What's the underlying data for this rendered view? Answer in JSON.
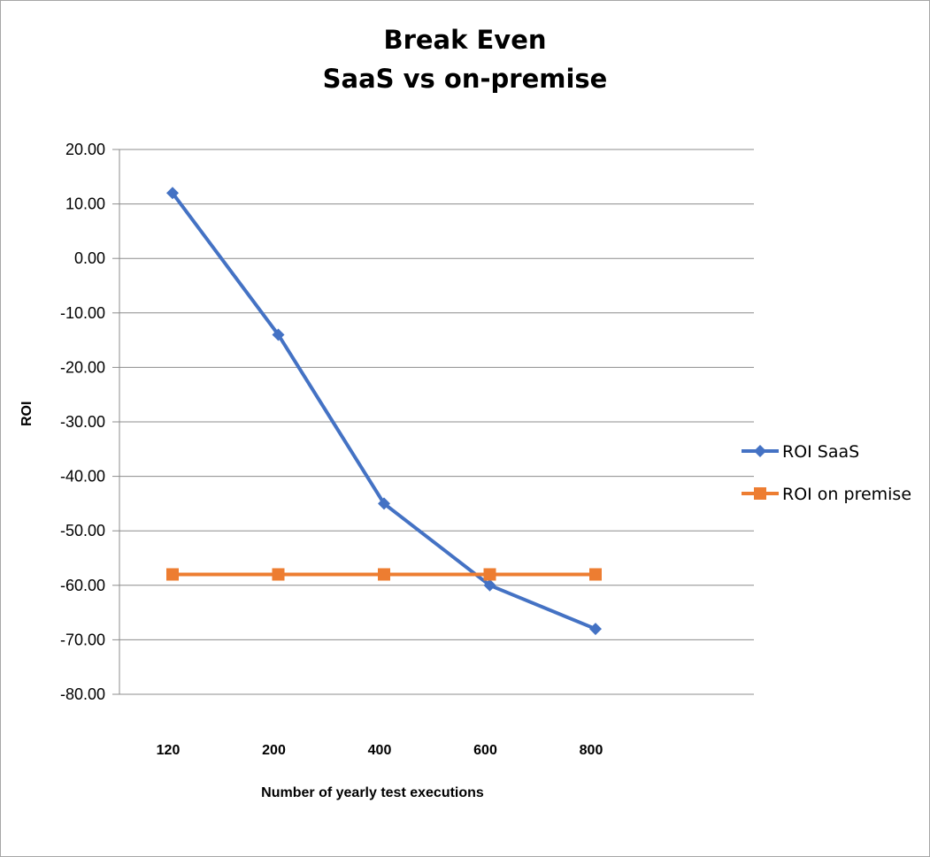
{
  "chart_data": {
    "type": "line",
    "title": "Break Even",
    "subtitle": "SaaS vs on-premise",
    "xlabel": "Number of yearly test executions",
    "ylabel": "ROI",
    "categories": [
      "120",
      "200",
      "400",
      "600",
      "800"
    ],
    "ylim": [
      -80,
      20
    ],
    "ytick_step": 10,
    "ytick_labels": [
      "20.00",
      "10.00",
      "0.00",
      "-10.00",
      "-20.00",
      "-30.00",
      "-40.00",
      "-50.00",
      "-60.00",
      "-70.00",
      "-80.00"
    ],
    "grid": "horizontal",
    "legend_position": "right",
    "series": [
      {
        "name": "ROI SaaS",
        "values": [
          12,
          -14,
          -45,
          -60,
          -68
        ],
        "color": "#4472c4",
        "marker": "diamond"
      },
      {
        "name": "ROI on premise",
        "values": [
          -58,
          -58,
          -58,
          -58,
          -58
        ],
        "color": "#ed7d31",
        "marker": "square"
      }
    ]
  }
}
